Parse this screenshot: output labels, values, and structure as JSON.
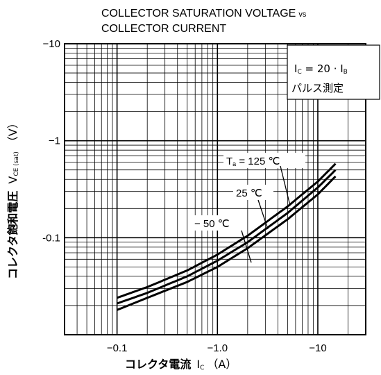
{
  "chart_data": {
    "type": "line",
    "title_line1": "COLLECTOR SATURATION VOLTAGE",
    "title_vs": "vs",
    "title_line2": "COLLECTOR CURRENT",
    "xlabel_text": "コレクタ電流",
    "xlabel_symbol": "I",
    "xlabel_sub": "C",
    "xlabel_unit": "（A）",
    "ylabel_text": "コレクタ飽和電圧",
    "ylabel_symbol": "V",
    "ylabel_sub": "CE (sat)",
    "ylabel_unit": "（V）",
    "x_scale": "log",
    "y_scale": "log",
    "x_range": [
      -0.03,
      -30
    ],
    "y_range": [
      -0.01,
      -10
    ],
    "x_ticks": [
      -0.1,
      -1.0,
      -10
    ],
    "x_tick_labels": [
      "−0.1",
      "−1.0",
      "−10"
    ],
    "y_ticks": [
      -10,
      -1,
      -0.1
    ],
    "y_tick_labels": [
      "−10",
      "−1",
      "-0.1"
    ],
    "grid": true,
    "condition_line1": "IC = 20 · IB",
    "condition_line1_parts": [
      "I",
      "C",
      " = 20 · I",
      "B"
    ],
    "condition_line2": "パルス測定",
    "series": [
      {
        "name": "Ta = 125 ℃",
        "label_parts": [
          "T",
          "a",
          " = 125 ℃"
        ],
        "x": [
          -0.1,
          -0.2,
          -0.5,
          -1.0,
          -2.0,
          -5.0,
          -10,
          -15
        ],
        "y": [
          -0.024,
          -0.031,
          -0.046,
          -0.067,
          -0.105,
          -0.21,
          -0.38,
          -0.58
        ]
      },
      {
        "name": "25 ℃",
        "label_parts": [
          "25 ℃"
        ],
        "x": [
          -0.1,
          -0.2,
          -0.5,
          -1.0,
          -2.0,
          -5.0,
          -10,
          -15
        ],
        "y": [
          -0.021,
          -0.027,
          -0.04,
          -0.058,
          -0.09,
          -0.18,
          -0.33,
          -0.5
        ]
      },
      {
        "name": "−50 ℃",
        "label_parts": [
          "− 50 ℃"
        ],
        "x": [
          -0.1,
          -0.2,
          -0.5,
          -1.0,
          -2.0,
          -5.0,
          -10,
          -15
        ],
        "y": [
          -0.018,
          -0.024,
          -0.035,
          -0.05,
          -0.078,
          -0.155,
          -0.28,
          -0.43
        ]
      }
    ]
  }
}
